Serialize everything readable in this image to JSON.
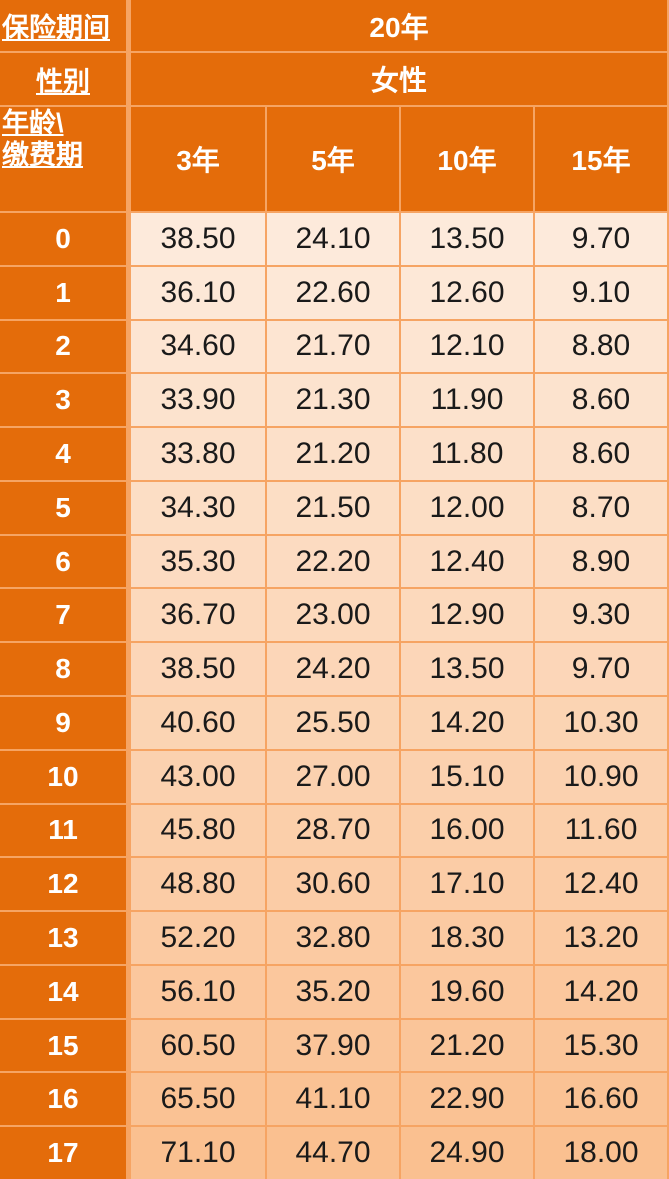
{
  "header": {
    "term_label": "保险期间",
    "term": "20年",
    "gender_label": "性别",
    "gender": "女性",
    "age_label": [
      "年龄\\",
      "缴费期"
    ],
    "pay_periods": [
      "3年",
      "5年",
      "10年",
      "15年"
    ]
  },
  "table": {
    "rows": [
      [
        "0",
        "38.50",
        "24.10",
        "13.50",
        "9.70"
      ],
      [
        "1",
        "36.10",
        "22.60",
        "12.60",
        "9.10"
      ],
      [
        "2",
        "34.60",
        "21.70",
        "12.10",
        "8.80"
      ],
      [
        "3",
        "33.90",
        "21.30",
        "11.90",
        "8.60"
      ],
      [
        "4",
        "33.80",
        "21.20",
        "11.80",
        "8.60"
      ],
      [
        "5",
        "34.30",
        "21.50",
        "12.00",
        "8.70"
      ],
      [
        "6",
        "35.30",
        "22.20",
        "12.40",
        "8.90"
      ],
      [
        "7",
        "36.70",
        "23.00",
        "12.90",
        "9.30"
      ],
      [
        "8",
        "38.50",
        "24.20",
        "13.50",
        "9.70"
      ],
      [
        "9",
        "40.60",
        "25.50",
        "14.20",
        "10.30"
      ],
      [
        "10",
        "43.00",
        "27.00",
        "15.10",
        "10.90"
      ],
      [
        "11",
        "45.80",
        "28.70",
        "16.00",
        "11.60"
      ],
      [
        "12",
        "48.80",
        "30.60",
        "17.10",
        "12.40"
      ],
      [
        "13",
        "52.20",
        "32.80",
        "18.30",
        "13.20"
      ],
      [
        "14",
        "56.10",
        "35.20",
        "19.60",
        "14.20"
      ],
      [
        "15",
        "60.50",
        "37.90",
        "21.20",
        "15.30"
      ],
      [
        "16",
        "65.50",
        "41.10",
        "22.90",
        "16.60"
      ],
      [
        "17",
        "71.10",
        "44.70",
        "24.90",
        "18.00"
      ]
    ]
  }
}
